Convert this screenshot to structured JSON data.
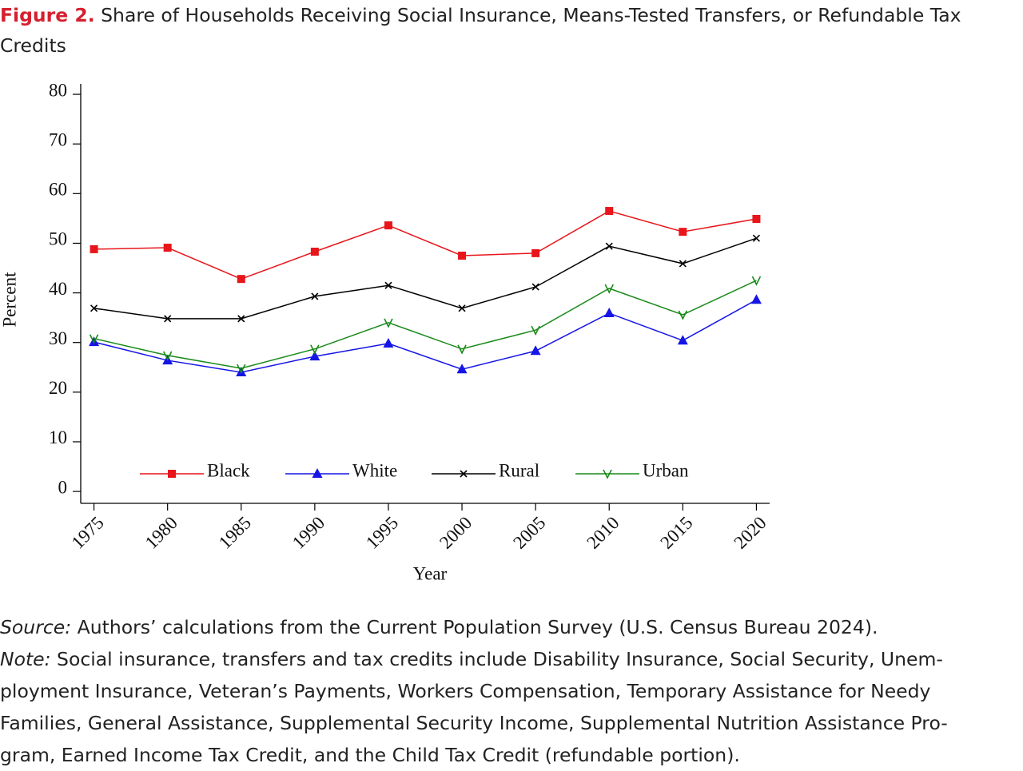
{
  "figure_label": "Figure 2.",
  "chart_data": {
    "type": "line",
    "title": "Share of Households Receiving Social Insurance, Means-Tested Transfers, or Refundable Tax Credits",
    "x": [
      1975,
      1980,
      1985,
      1990,
      1995,
      2000,
      2005,
      2010,
      2015,
      2020
    ],
    "series": [
      {
        "name": "Black",
        "color": "#e8151b",
        "marker": "square",
        "values": [
          48.8,
          49.1,
          42.8,
          48.3,
          53.6,
          47.5,
          48.0,
          56.5,
          52.3,
          54.9
        ]
      },
      {
        "name": "White",
        "color": "#1515e6",
        "marker": "triangle",
        "values": [
          30.1,
          26.4,
          24.0,
          27.2,
          29.8,
          24.6,
          28.3,
          35.9,
          30.4,
          38.6
        ]
      },
      {
        "name": "Rural",
        "color": "#000000",
        "marker": "x",
        "values": [
          36.9,
          34.8,
          34.8,
          39.3,
          41.5,
          36.9,
          41.2,
          49.4,
          45.9,
          51.0
        ]
      },
      {
        "name": "Urban",
        "color": "#1a8a1a",
        "marker": "v",
        "values": [
          30.8,
          27.4,
          24.8,
          28.7,
          34.0,
          28.7,
          32.5,
          40.9,
          35.6,
          42.5
        ]
      }
    ],
    "xlim": [
      1974.1,
      2020.9
    ],
    "xticks": [
      1975,
      1980,
      1985,
      1990,
      1995,
      2000,
      2005,
      2010,
      2015,
      2020
    ],
    "ylim": [
      -2.4,
      82.1
    ],
    "yticks": [
      0,
      10,
      20,
      30,
      40,
      50,
      60,
      70,
      80
    ],
    "xlabel": "Year",
    "ylabel": "Percent",
    "legend": "bottom",
    "grid": false
  },
  "source": {
    "label": "Source:",
    "text": "Authors’ calculations from the Current Population Survey (U.S. Census Bureau 2024)."
  },
  "note": {
    "label": "Note:",
    "lines": [
      "Social insurance, transfers and tax credits include Disability Insurance, Social Security, Unem-",
      "ployment Insurance, Veteran’s Payments, Workers Compensation, Temporary Assistance for Needy",
      "Families, General Assistance, Supplemental Security Income, Supplemental Nutrition Assistance Pro-",
      "gram, Earned Income Tax Credit, and the Child Tax Credit (refundable portion)."
    ]
  }
}
